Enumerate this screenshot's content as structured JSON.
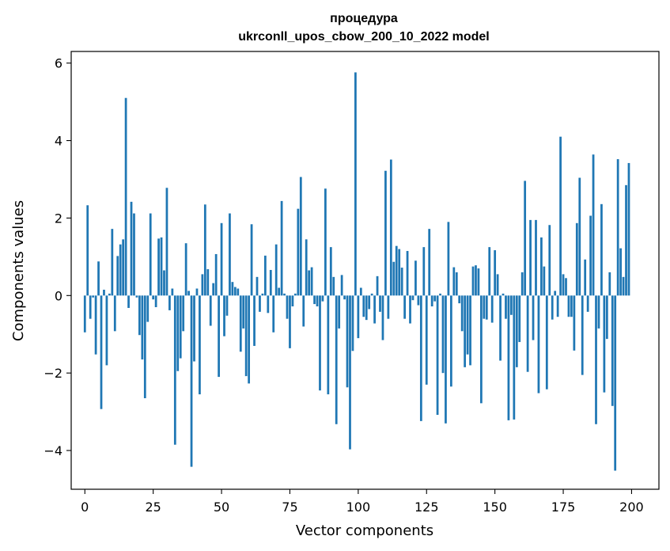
{
  "chart_data": {
    "type": "bar",
    "title": [
      "процедура",
      "ukrconll_upos_cbow_200_10_2022 model"
    ],
    "xlabel": "Vector components",
    "ylabel": "Components values",
    "xlim": [
      -5,
      210
    ],
    "ylim": [
      -5,
      6.3
    ],
    "xticks": [
      0,
      25,
      50,
      75,
      100,
      125,
      150,
      175,
      200
    ],
    "yticks": [
      -4,
      -2,
      0,
      2,
      4,
      6
    ],
    "xtick_labels": [
      "0",
      "25",
      "50",
      "75",
      "100",
      "125",
      "150",
      "175",
      "200"
    ],
    "ytick_labels": [
      "−4",
      "−2",
      "0",
      "2",
      "4",
      "6"
    ],
    "grid": false,
    "bar_color": "#1f77b4",
    "x": [
      0,
      1,
      2,
      3,
      4,
      5,
      6,
      7,
      8,
      9,
      10,
      11,
      12,
      13,
      14,
      15,
      16,
      17,
      18,
      19,
      20,
      21,
      22,
      23,
      24,
      25,
      26,
      27,
      28,
      29,
      30,
      31,
      32,
      33,
      34,
      35,
      36,
      37,
      38,
      39,
      40,
      41,
      42,
      43,
      44,
      45,
      46,
      47,
      48,
      49,
      50,
      51,
      52,
      53,
      54,
      55,
      56,
      57,
      58,
      59,
      60,
      61,
      62,
      63,
      64,
      65,
      66,
      67,
      68,
      69,
      70,
      71,
      72,
      73,
      74,
      75,
      76,
      77,
      78,
      79,
      80,
      81,
      82,
      83,
      84,
      85,
      86,
      87,
      88,
      89,
      90,
      91,
      92,
      93,
      94,
      95,
      96,
      97,
      98,
      99,
      100,
      101,
      102,
      103,
      104,
      105,
      106,
      107,
      108,
      109,
      110,
      111,
      112,
      113,
      114,
      115,
      116,
      117,
      118,
      119,
      120,
      121,
      122,
      123,
      124,
      125,
      126,
      127,
      128,
      129,
      130,
      131,
      132,
      133,
      134,
      135,
      136,
      137,
      138,
      139,
      140,
      141,
      142,
      143,
      144,
      145,
      146,
      147,
      148,
      149,
      150,
      151,
      152,
      153,
      154,
      155,
      156,
      157,
      158,
      159,
      160,
      161,
      162,
      163,
      164,
      165,
      166,
      167,
      168,
      169,
      170,
      171,
      172,
      173,
      174,
      175,
      176,
      177,
      178,
      179,
      180,
      181,
      182,
      183,
      184,
      185,
      186,
      187,
      188,
      189,
      190,
      191,
      192,
      193,
      194,
      195,
      196,
      197,
      198,
      199
    ],
    "values": [
      -0.95,
      2.33,
      -0.6,
      -0.05,
      -1.52,
      0.88,
      -2.93,
      0.15,
      -1.8,
      0.05,
      1.72,
      -0.92,
      1.02,
      1.32,
      1.45,
      5.1,
      -0.32,
      2.42,
      2.12,
      -0.05,
      -1.02,
      -1.65,
      -2.65,
      -0.68,
      2.12,
      -0.1,
      -0.3,
      1.47,
      1.5,
      0.65,
      2.78,
      -0.38,
      0.18,
      -3.85,
      -1.95,
      -1.62,
      -0.92,
      1.35,
      0.12,
      -4.42,
      -1.7,
      0.18,
      -2.55,
      0.55,
      2.35,
      0.68,
      -0.78,
      0.32,
      1.07,
      -2.1,
      1.87,
      -1.05,
      -0.52,
      2.12,
      0.35,
      0.22,
      0.18,
      -1.45,
      -0.85,
      -2.08,
      -2.27,
      1.84,
      -1.3,
      0.48,
      -0.42,
      0.05,
      1.03,
      -0.45,
      0.66,
      -0.95,
      1.32,
      0.2,
      2.44,
      0.05,
      -0.6,
      -1.36,
      -0.28,
      0.05,
      2.24,
      3.06,
      -0.8,
      1.45,
      0.65,
      0.73,
      -0.22,
      -0.28,
      -2.45,
      -0.15,
      2.76,
      -2.55,
      1.25,
      0.48,
      -3.32,
      -0.85,
      0.53,
      -0.1,
      -2.37,
      -3.97,
      -1.43,
      5.76,
      -1.1,
      0.2,
      -0.55,
      -0.63,
      -0.35,
      0.05,
      -0.72,
      0.5,
      -0.42,
      -1.15,
      3.22,
      -0.6,
      3.51,
      0.87,
      1.28,
      1.2,
      0.72,
      -0.6,
      1.15,
      -0.72,
      -0.12,
      0.9,
      -0.25,
      -3.24,
      1.25,
      -2.3,
      1.72,
      -0.28,
      -0.15,
      -3.08,
      0.05,
      -2.0,
      -3.3,
      1.9,
      -2.35,
      0.73,
      0.6,
      -0.2,
      -0.92,
      -1.85,
      -1.52,
      -1.8,
      0.75,
      0.78,
      0.7,
      -2.78,
      -0.6,
      -0.62,
      1.25,
      -0.7,
      1.17,
      0.55,
      -1.68,
      0.05,
      -0.6,
      -3.22,
      -0.5,
      -3.2,
      -1.85,
      -1.2,
      0.6,
      2.96,
      -1.97,
      1.95,
      -1.15,
      1.95,
      -2.52,
      1.5,
      0.75,
      -2.42,
      1.82,
      -0.62,
      0.12,
      -0.55,
      4.1,
      0.55,
      0.45,
      -0.55,
      -0.55,
      -1.42,
      1.87,
      3.04,
      -2.05,
      0.93,
      -0.42,
      2.06,
      3.64,
      -3.32,
      -0.85,
      2.36,
      -2.5,
      -1.12,
      0.6,
      -2.85,
      -4.52,
      3.52,
      1.22,
      0.48,
      2.85,
      3.42
    ]
  }
}
